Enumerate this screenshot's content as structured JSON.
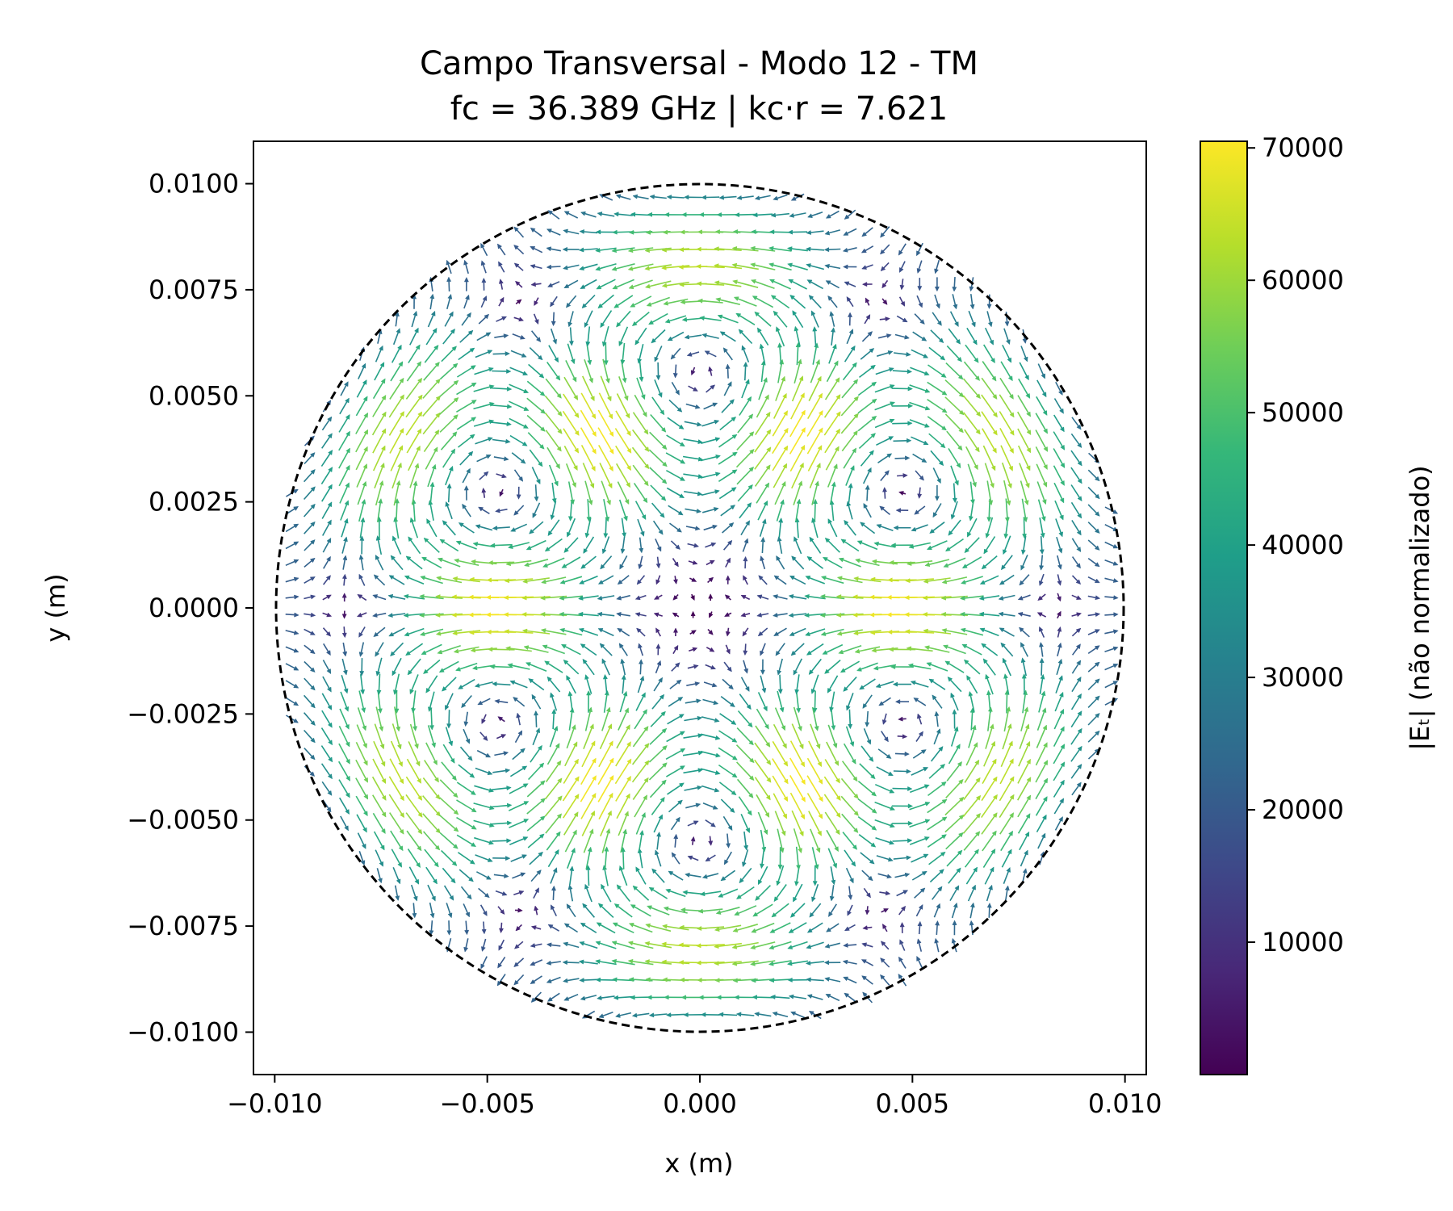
{
  "chart_data": {
    "type": "quiver",
    "title": "Campo Transversal - Modo 12 - TM",
    "subtitle": "fc = 36.389 GHz | kc·r = 7.621",
    "xlabel": "x (m)",
    "ylabel": "y (m)",
    "xlim": [
      -0.0105,
      0.0105
    ],
    "ylim": [
      -0.011,
      0.011
    ],
    "x_ticks": [
      -0.01,
      -0.005,
      0.0,
      0.005,
      0.01
    ],
    "x_tick_labels": [
      "−0.010",
      "−0.005",
      "0.000",
      "0.005",
      "0.010"
    ],
    "y_ticks": [
      0.01,
      0.0075,
      0.005,
      0.0025,
      0.0,
      -0.0025,
      -0.005,
      -0.0075,
      -0.01
    ],
    "y_tick_labels": [
      "0.0100",
      "0.0075",
      "0.0050",
      "0.0025",
      "0.0000",
      "−0.0025",
      "−0.0050",
      "−0.0075",
      "−0.0100"
    ],
    "waveguide_radius": 0.01,
    "mode": {
      "type": "TM",
      "azimuthal_order": 3,
      "kc_r": 7.621,
      "fc_GHz": 36.389
    },
    "field_max": 70000,
    "colorbar": {
      "label": "|Eₜ| (não normalizado)",
      "ticks": [
        10000,
        20000,
        30000,
        40000,
        50000,
        60000,
        70000
      ],
      "tick_labels": [
        "10000",
        "20000",
        "30000",
        "40000",
        "50000",
        "60000",
        "70000"
      ],
      "range": [
        0,
        70500
      ],
      "colormap": "viridis",
      "colors": [
        "#440154",
        "#482878",
        "#3e4989",
        "#31688e",
        "#26828e",
        "#1f9e89",
        "#35b779",
        "#6ece58",
        "#b5de2b",
        "#fde725"
      ]
    },
    "grid": false,
    "boundary_style": "dashed black circle"
  }
}
